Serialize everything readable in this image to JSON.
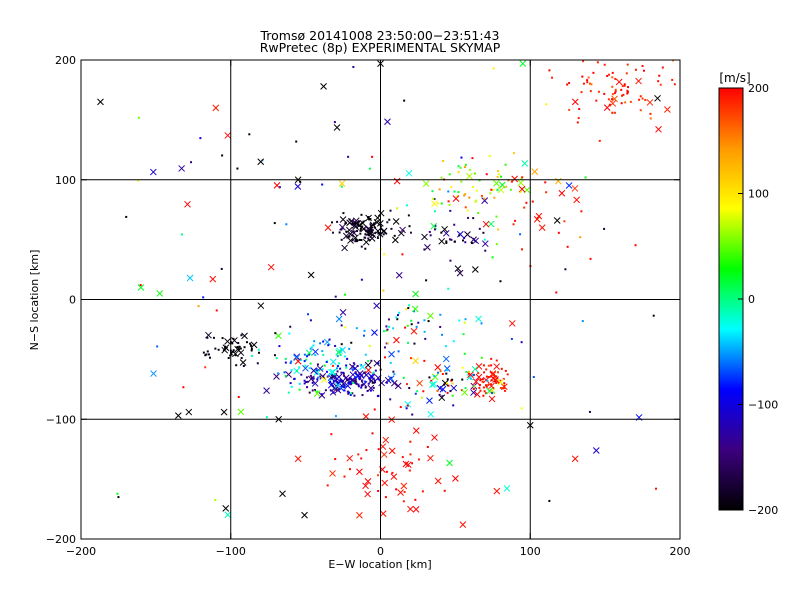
{
  "chart_data": {
    "type": "scatter",
    "title": "Tromsø 20141008 23:50:00−23:51:43",
    "subtitle": "RwPretec (8p) EXPERIMENTAL SKYMAP",
    "xlabel": "E−W location [km]",
    "ylabel": "N−S location [km]",
    "xlim": [
      -200,
      200
    ],
    "ylim": [
      -200,
      200
    ],
    "xticks": [
      -200,
      -100,
      0,
      100,
      200
    ],
    "yticks": [
      -200,
      -100,
      0,
      100,
      200
    ],
    "grid_lines_x": [
      -100,
      0,
      100
    ],
    "grid_lines_y": [
      -100,
      0,
      100
    ],
    "colorbar": {
      "label": "[m/s]",
      "min": -200,
      "max": 200,
      "ticks": [
        -200,
        -100,
        0,
        100,
        200
      ],
      "colormap": [
        "#000000",
        "#3c0080",
        "#0000ff",
        "#00ffff",
        "#00ff00",
        "#ffff00",
        "#ff9900",
        "#ff0000"
      ]
    },
    "markers": {
      "cross": "large detection",
      "dot": "small detection"
    },
    "clusters": [
      {
        "name": "cluster-ne-corner",
        "cx": 160,
        "cy": 178,
        "sx": 22,
        "sy": 14,
        "v": 190,
        "vs": 15,
        "n": 90,
        "cross_frac": 0.12
      },
      {
        "name": "cluster-north-center",
        "cx": -12,
        "cy": 58,
        "sx": 11,
        "sy": 6,
        "v": -190,
        "vs": 20,
        "n": 110,
        "cross_frac": 0.35
      },
      {
        "name": "cluster-north-east",
        "cx": 50,
        "cy": 55,
        "sx": 12,
        "sy": 12,
        "v": -170,
        "vs": 35,
        "n": 40,
        "cross_frac": 0.3
      },
      {
        "name": "cluster-north-mid",
        "cx": 62,
        "cy": 95,
        "sx": 22,
        "sy": 12,
        "v": 80,
        "vs": 60,
        "n": 70,
        "cross_frac": 0.1
      },
      {
        "name": "cluster-south-blue",
        "cx": -25,
        "cy": -68,
        "sx": 17,
        "sy": 7,
        "v": -130,
        "vs": 25,
        "n": 160,
        "cross_frac": 0.25
      },
      {
        "name": "cluster-south-west-cyan",
        "cx": -40,
        "cy": -50,
        "sx": 18,
        "sy": 15,
        "v": -40,
        "vs": 45,
        "n": 90,
        "cross_frac": 0.2
      },
      {
        "name": "cluster-west-black",
        "cx": -100,
        "cy": -42,
        "sx": 12,
        "sy": 8,
        "v": -195,
        "vs": 10,
        "n": 55,
        "cross_frac": 0.25
      },
      {
        "name": "cluster-east-red",
        "cx": 75,
        "cy": -68,
        "sx": 6,
        "sy": 7,
        "v": 195,
        "vs": 8,
        "n": 60,
        "cross_frac": 0.2
      },
      {
        "name": "cluster-south-east-mixed",
        "cx": 45,
        "cy": -72,
        "sx": 15,
        "sy": 9,
        "v": 40,
        "vs": 170,
        "n": 70,
        "cross_frac": 0.3
      },
      {
        "name": "cluster-south-red",
        "cx": 5,
        "cy": -140,
        "sx": 22,
        "sy": 20,
        "v": 195,
        "vs": 10,
        "n": 55,
        "cross_frac": 0.5
      },
      {
        "name": "cluster-center-mixed",
        "cx": 15,
        "cy": -25,
        "sx": 22,
        "sy": 14,
        "v": -20,
        "vs": 110,
        "n": 60,
        "cross_frac": 0.2
      },
      {
        "name": "cluster-north-sparse-red",
        "cx": 110,
        "cy": 75,
        "sx": 18,
        "sy": 25,
        "v": 195,
        "vs": 10,
        "n": 25,
        "cross_frac": 0.4
      },
      {
        "name": "scatter-background",
        "cx": 0,
        "cy": 0,
        "sx": 110,
        "sy": 110,
        "v": 0,
        "vs": 190,
        "n": 140,
        "cross_frac": 0.3
      }
    ],
    "sample_points": [
      {
        "x": -187,
        "y": 165,
        "v": -200,
        "m": "cross"
      },
      {
        "x": -160,
        "y": 10,
        "v": 20,
        "m": "cross"
      },
      {
        "x": -135,
        "y": -97,
        "v": -200,
        "m": "cross"
      },
      {
        "x": -110,
        "y": 160,
        "v": 190,
        "m": "cross"
      },
      {
        "x": -102,
        "y": 137,
        "v": 195,
        "m": "cross"
      },
      {
        "x": -80,
        "y": 115,
        "v": -200,
        "m": "cross"
      },
      {
        "x": -55,
        "y": 100,
        "v": -200,
        "m": "cross"
      },
      {
        "x": -38,
        "y": 178,
        "v": -200,
        "m": "cross"
      },
      {
        "x": 0,
        "y": 197,
        "v": -200,
        "m": "cross"
      },
      {
        "x": 95,
        "y": 197,
        "v": 20,
        "m": "cross"
      },
      {
        "x": 185,
        "y": 168,
        "v": -200,
        "m": "cross"
      },
      {
        "x": -35,
        "y": 60,
        "v": 195,
        "m": "cross"
      },
      {
        "x": -73,
        "y": 27,
        "v": 195,
        "m": "cross"
      },
      {
        "x": -112,
        "y": 17,
        "v": 195,
        "m": "cross"
      },
      {
        "x": -68,
        "y": -100,
        "v": -200,
        "m": "cross"
      },
      {
        "x": -128,
        "y": -94,
        "v": -200,
        "m": "cross"
      },
      {
        "x": 130,
        "y": -133,
        "v": 195,
        "m": "cross"
      },
      {
        "x": 55,
        "y": -188,
        "v": 195,
        "m": "cross"
      },
      {
        "x": 20,
        "y": -175,
        "v": 195,
        "m": "cross"
      },
      {
        "x": -55,
        "y": -133,
        "v": 195,
        "m": "cross"
      },
      {
        "x": 88,
        "y": -20,
        "v": 195,
        "m": "cross"
      },
      {
        "x": 100,
        "y": -105,
        "v": -200,
        "m": "cross"
      },
      {
        "x": 108,
        "y": 60,
        "v": 195,
        "m": "cross"
      },
      {
        "x": 118,
        "y": 66,
        "v": -200,
        "m": "cross"
      },
      {
        "x": 175,
        "y": 195,
        "v": 195,
        "m": "dot"
      },
      {
        "x": 184,
        "y": -158,
        "v": 195,
        "m": "dot"
      },
      {
        "x": -175,
        "y": -165,
        "v": -200,
        "m": "dot"
      }
    ]
  }
}
